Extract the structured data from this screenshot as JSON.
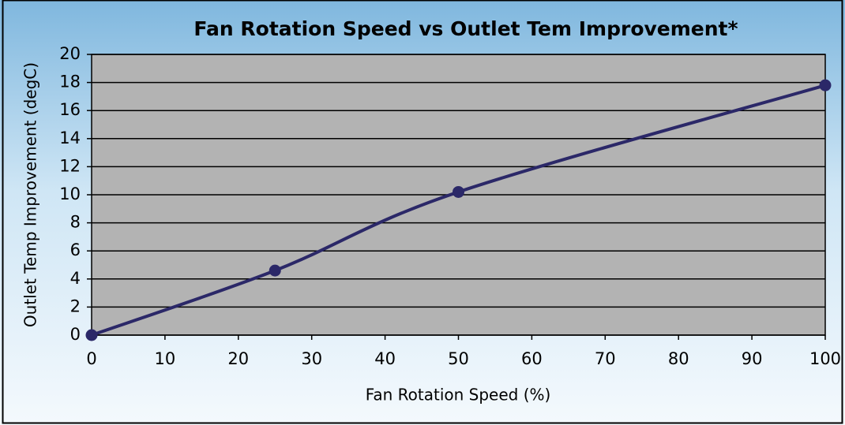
{
  "chart_data": {
    "type": "line",
    "title": "Fan Rotation Speed vs Outlet Tem Improvement*",
    "x_label": "Fan Rotation Speed (%)",
    "y_label": "Outlet Temp Improvement (degC)",
    "x": [
      0,
      25,
      50,
      100
    ],
    "values": [
      0,
      4.6,
      10.2,
      17.8
    ],
    "color": "#2b2868",
    "smooth": true,
    "xlim": [
      0,
      100
    ],
    "xticks": [
      0,
      10,
      20,
      30,
      40,
      50,
      60,
      70,
      80,
      90,
      100
    ],
    "ylim": [
      0,
      20
    ],
    "yticks": [
      0,
      2,
      4,
      6,
      8,
      10,
      12,
      14,
      16,
      18,
      20
    ],
    "grid": true
  }
}
